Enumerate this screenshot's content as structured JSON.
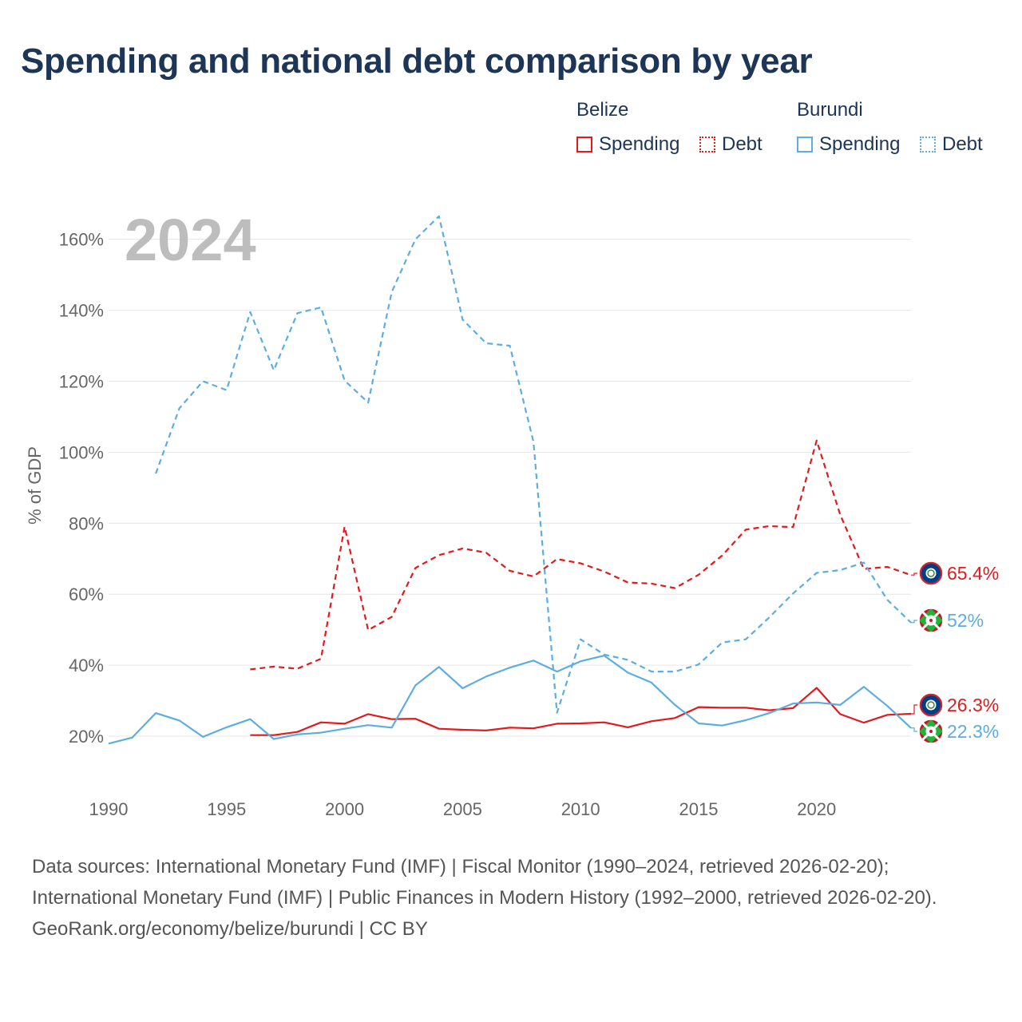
{
  "title": "Spending and national debt comparison by year",
  "year_label": "2024",
  "legend": {
    "groups": [
      {
        "name": "Belize",
        "color": "#e31a1c",
        "items": [
          {
            "label": "Spending",
            "style": "solid"
          },
          {
            "label": "Debt",
            "style": "dotted"
          }
        ]
      },
      {
        "name": "Burundi",
        "color": "#5dade2",
        "items": [
          {
            "label": "Spending",
            "style": "solid"
          },
          {
            "label": "Debt",
            "style": "dotted"
          }
        ]
      }
    ]
  },
  "chart_data": {
    "type": "line",
    "title": "Spending and national debt comparison by year",
    "xlabel": "",
    "ylabel": "% of GDP",
    "xlim": [
      1990,
      2024
    ],
    "ylim": [
      10,
      170
    ],
    "x_ticks": [
      1990,
      1995,
      2000,
      2005,
      2010,
      2015,
      2020
    ],
    "y_ticks": [
      20,
      40,
      60,
      80,
      100,
      120,
      140,
      160
    ],
    "y_tick_labels": [
      "20%",
      "40%",
      "60%",
      "80%",
      "100%",
      "120%",
      "140%",
      "160%"
    ],
    "grid": true,
    "series": [
      {
        "name": "Belize Debt",
        "country": "Belize",
        "metric": "Debt",
        "color": "#e31a1c",
        "dash": true,
        "x": [
          1996,
          1997,
          1998,
          1999,
          2000,
          2001,
          2002,
          2003,
          2004,
          2005,
          2006,
          2007,
          2008,
          2009,
          2010,
          2011,
          2012,
          2013,
          2014,
          2015,
          2016,
          2017,
          2018,
          2019,
          2020,
          2021,
          2022,
          2023,
          2024
        ],
        "values": [
          38.8,
          39.6,
          39.0,
          41.8,
          79.0,
          49.9,
          53.6,
          67.4,
          71.0,
          72.9,
          71.7,
          66.6,
          65.0,
          69.9,
          68.7,
          66.4,
          63.3,
          63.0,
          61.7,
          65.5,
          70.9,
          78.2,
          79.2,
          78.9,
          103.3,
          82.4,
          67.1,
          67.7,
          65.4
        ],
        "end_label": "65.4%"
      },
      {
        "name": "Burundi Debt",
        "country": "Burundi",
        "metric": "Debt",
        "color": "#5dade2",
        "dash": true,
        "x": [
          1992,
          1993,
          1994,
          1995,
          1996,
          1997,
          1998,
          1999,
          2000,
          2001,
          2002,
          2003,
          2004,
          2005,
          2006,
          2007,
          2008,
          2009,
          2010,
          2011,
          2012,
          2013,
          2014,
          2015,
          2016,
          2017,
          2018,
          2019,
          2020,
          2021,
          2022,
          2023,
          2024
        ],
        "values": [
          94.0,
          112.4,
          120.0,
          117.5,
          139.5,
          123.1,
          139.2,
          140.8,
          120.2,
          114.0,
          145.2,
          160.0,
          166.5,
          137.4,
          130.7,
          130.0,
          103.0,
          26.6,
          47.3,
          43.0,
          41.5,
          38.2,
          38.2,
          40.2,
          46.4,
          47.3,
          53.5,
          60.2,
          66.0,
          66.8,
          68.9,
          58.4,
          52.0
        ],
        "end_label": "52%"
      },
      {
        "name": "Belize Spending",
        "country": "Belize",
        "metric": "Spending",
        "color": "#e31a1c",
        "dash": false,
        "x": [
          1996,
          1997,
          1998,
          1999,
          2000,
          2001,
          2002,
          2003,
          2004,
          2005,
          2006,
          2007,
          2008,
          2009,
          2010,
          2011,
          2012,
          2013,
          2014,
          2015,
          2016,
          2017,
          2018,
          2019,
          2020,
          2021,
          2022,
          2023,
          2024
        ],
        "values": [
          20.3,
          20.3,
          21.2,
          23.9,
          23.5,
          26.2,
          24.8,
          24.9,
          22.1,
          21.8,
          21.6,
          22.4,
          22.2,
          23.5,
          23.6,
          23.9,
          22.5,
          24.2,
          25.1,
          28.2,
          28.0,
          28.0,
          27.3,
          27.9,
          33.6,
          26.2,
          23.8,
          26.0,
          26.3
        ],
        "end_label": "26.3%"
      },
      {
        "name": "Burundi Spending",
        "country": "Burundi",
        "metric": "Spending",
        "color": "#5dade2",
        "dash": false,
        "x": [
          1990,
          1991,
          1992,
          1993,
          1994,
          1995,
          1996,
          1997,
          1998,
          1999,
          2000,
          2001,
          2002,
          2003,
          2004,
          2005,
          2006,
          2007,
          2008,
          2009,
          2010,
          2011,
          2012,
          2013,
          2014,
          2015,
          2016,
          2017,
          2018,
          2019,
          2020,
          2021,
          2022,
          2023,
          2024
        ],
        "values": [
          17.9,
          19.6,
          26.5,
          24.4,
          19.8,
          22.5,
          24.8,
          19.2,
          20.5,
          21.0,
          22.1,
          23.1,
          22.4,
          34.3,
          39.5,
          33.5,
          36.8,
          39.3,
          41.3,
          38.2,
          41.1,
          42.7,
          37.9,
          35.1,
          28.8,
          23.6,
          23.0,
          24.5,
          26.5,
          29.2,
          29.5,
          28.8,
          33.9,
          28.5,
          22.3
        ],
        "end_label": "22.3%"
      }
    ]
  },
  "sources": [
    "Data sources: International Monetary Fund (IMF) | Fiscal Monitor (1990–2024, retrieved 2026-02-20); International Monetary Fund (IMF) | Public Finances in Modern History (1992–2000, retrieved 2026-02-20).",
    "GeoRank.org/economy/belize/burundi | CC BY"
  ]
}
